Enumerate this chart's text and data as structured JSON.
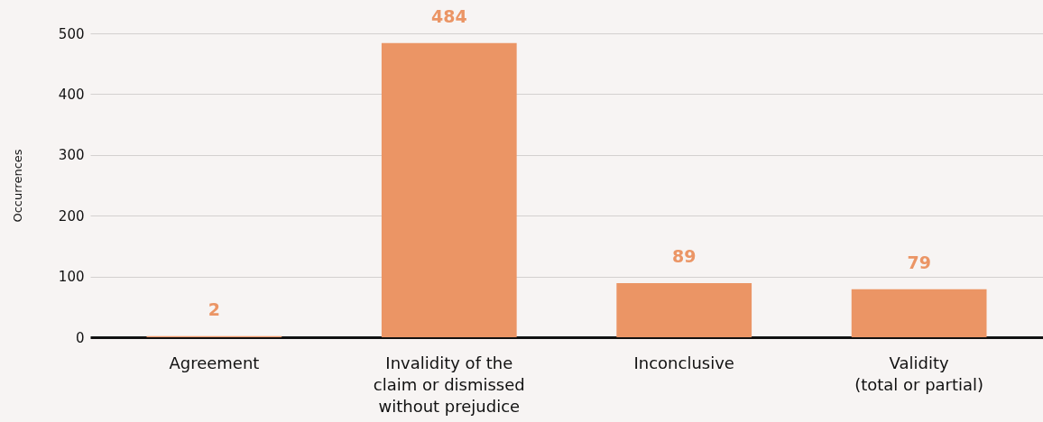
{
  "chart_data": {
    "type": "bar",
    "ylabel": "Occurrences",
    "categories": [
      "Agreement",
      "Invalidity of the claim or dismissed without prejudice",
      "Inconclusive",
      "Validity (total or partial)"
    ],
    "values": [
      2,
      484,
      89,
      79
    ],
    "color": "#eb9565",
    "ylim": [
      0,
      500
    ],
    "yticks": [
      0,
      100,
      200,
      300,
      400,
      500
    ],
    "grid": "y",
    "data_labels": true
  }
}
